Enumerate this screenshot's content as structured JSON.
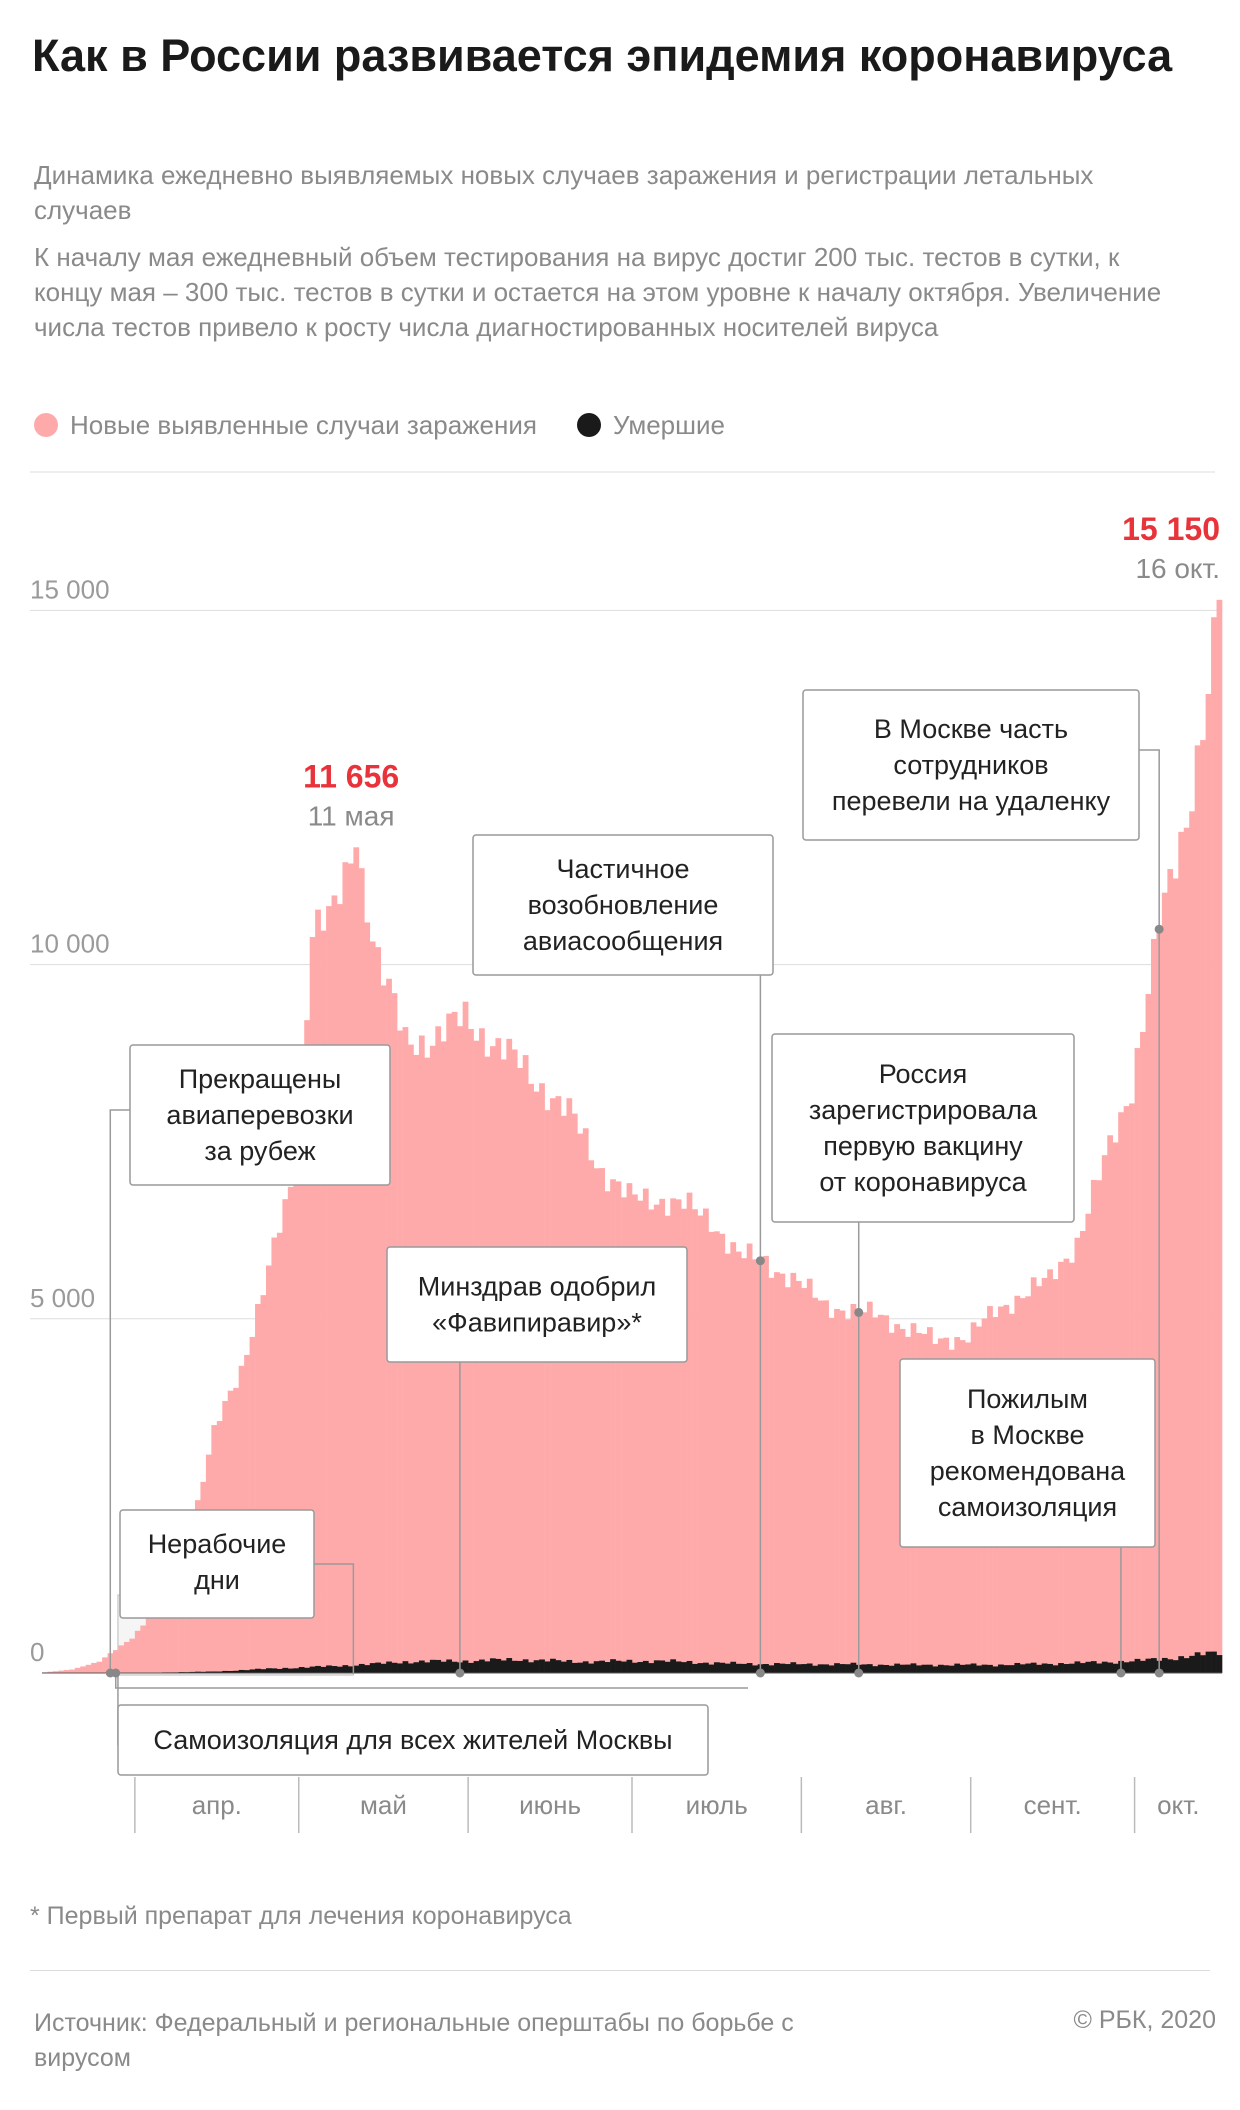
{
  "title": "Как в России развивается эпидемия коронавируса",
  "subtitle": "Динамика ежедневно выявляемых новых случаев заражения и регистрации летальных случаев",
  "description": "К началу мая ежедневный объем тестирования на вирус достиг 200 тыс. тестов в сутки, к концу мая – 300 тыс. тестов в сутки и остается на этом уровне к началу октября. Увеличение числа тестов привело к росту числа диагностированных носителей вируса",
  "legend": [
    {
      "label": "Новые выявленные случаи заражения",
      "color": "#ffaaaa"
    },
    {
      "label": "Умершие",
      "color": "#1a1a1a"
    }
  ],
  "footnote": "* Первый препарат для лечения коронавируса",
  "source": "Источник: Федеральный и региональные оперштабы по борьбе с вирусом",
  "copyright": "© РБК, 2020",
  "colors": {
    "cases": "#ffaaaa",
    "deaths": "#1a1a1a",
    "peak": "#e8333b",
    "grid": "#dddddd"
  },
  "chart_data": {
    "type": "bar",
    "x_start": "2020-03-15",
    "x_end": "2020-10-16",
    "ylim": [
      0,
      15500
    ],
    "y_ticks": [
      0,
      5000,
      10000,
      15000
    ],
    "y_tick_labels": [
      "0",
      "5 000",
      "10 000",
      "15 000"
    ],
    "month_labels": [
      "апр.",
      "май",
      "июнь",
      "июль",
      "авг.",
      "сент.",
      "окт."
    ],
    "series": [
      {
        "name": "Новые выявленные случаи заражения",
        "keypoints": [
          [
            "2020-03-15",
            10
          ],
          [
            "2020-03-20",
            50
          ],
          [
            "2020-03-25",
            160
          ],
          [
            "2020-03-31",
            500
          ],
          [
            "2020-04-05",
            950
          ],
          [
            "2020-04-10",
            1750
          ],
          [
            "2020-04-15",
            3400
          ],
          [
            "2020-04-20",
            4300
          ],
          [
            "2020-04-25",
            5700
          ],
          [
            "2020-04-30",
            7100
          ],
          [
            "2020-05-03",
            10600
          ],
          [
            "2020-05-07",
            10700
          ],
          [
            "2020-05-11",
            11656
          ],
          [
            "2020-05-15",
            10100
          ],
          [
            "2020-05-20",
            8900
          ],
          [
            "2020-05-25",
            8950
          ],
          [
            "2020-05-31",
            9250
          ],
          [
            "2020-06-05",
            8900
          ],
          [
            "2020-06-10",
            8600
          ],
          [
            "2020-06-15",
            8200
          ],
          [
            "2020-06-20",
            7800
          ],
          [
            "2020-06-25",
            7100
          ],
          [
            "2020-06-30",
            6700
          ],
          [
            "2020-07-05",
            6700
          ],
          [
            "2020-07-10",
            6600
          ],
          [
            "2020-07-15",
            6400
          ],
          [
            "2020-07-20",
            5900
          ],
          [
            "2020-07-25",
            5800
          ],
          [
            "2020-07-31",
            5500
          ],
          [
            "2020-08-05",
            5200
          ],
          [
            "2020-08-10",
            5100
          ],
          [
            "2020-08-15",
            5050
          ],
          [
            "2020-08-20",
            4850
          ],
          [
            "2020-08-25",
            4700
          ],
          [
            "2020-08-31",
            4750
          ],
          [
            "2020-09-05",
            5100
          ],
          [
            "2020-09-10",
            5350
          ],
          [
            "2020-09-15",
            5550
          ],
          [
            "2020-09-20",
            6100
          ],
          [
            "2020-09-25",
            7200
          ],
          [
            "2020-09-30",
            8300
          ],
          [
            "2020-10-05",
            10500
          ],
          [
            "2020-10-10",
            12100
          ],
          [
            "2020-10-14",
            13800
          ],
          [
            "2020-10-16",
            15150
          ]
        ]
      },
      {
        "name": "Умершие",
        "keypoints": [
          [
            "2020-03-15",
            0
          ],
          [
            "2020-04-01",
            2
          ],
          [
            "2020-04-15",
            20
          ],
          [
            "2020-04-25",
            60
          ],
          [
            "2020-05-05",
            90
          ],
          [
            "2020-05-15",
            130
          ],
          [
            "2020-05-20",
            160
          ],
          [
            "2020-05-31",
            170
          ],
          [
            "2020-06-10",
            190
          ],
          [
            "2020-06-20",
            160
          ],
          [
            "2020-07-05",
            170
          ],
          [
            "2020-07-20",
            130
          ],
          [
            "2020-08-05",
            125
          ],
          [
            "2020-08-20",
            115
          ],
          [
            "2020-09-05",
            115
          ],
          [
            "2020-09-20",
            140
          ],
          [
            "2020-10-01",
            170
          ],
          [
            "2020-10-10",
            230
          ],
          [
            "2020-10-16",
            290
          ]
        ]
      }
    ],
    "peaks": [
      {
        "date": "2020-05-11",
        "value": "11 656",
        "label": "11 мая"
      },
      {
        "date": "2020-10-16",
        "value": "15 150",
        "label": "16 окт."
      }
    ],
    "shaded": {
      "start": "2020-03-30",
      "end": "2020-05-11",
      "label": "Нерабочие дни"
    },
    "annotations": [
      {
        "date": "2020-03-28",
        "text": [
          "Самоизоляция для всех жителей Москвы"
        ]
      },
      {
        "date": "2020-03-27",
        "text": [
          "Прекращены",
          "авиаперевозки",
          "за рубеж"
        ]
      },
      {
        "date": "2020-05-30",
        "text": [
          "Минздрав одобрил",
          "«Фавипиравир»*"
        ]
      },
      {
        "date": "2020-07-24",
        "text": [
          "Частичное",
          "возобновление",
          "авиасообщения"
        ]
      },
      {
        "date": "2020-08-11",
        "text": [
          "Россия",
          "зарегистрировала",
          "первую вакцину",
          "от коронавируса"
        ]
      },
      {
        "date": "2020-10-05",
        "text": [
          "В Москве часть",
          "сотрудников",
          "перевели на удаленку"
        ]
      },
      {
        "date": "2020-09-28",
        "text": [
          "Пожилым",
          "в Москве",
          "рекомендована",
          "самоизоляция"
        ]
      }
    ]
  }
}
